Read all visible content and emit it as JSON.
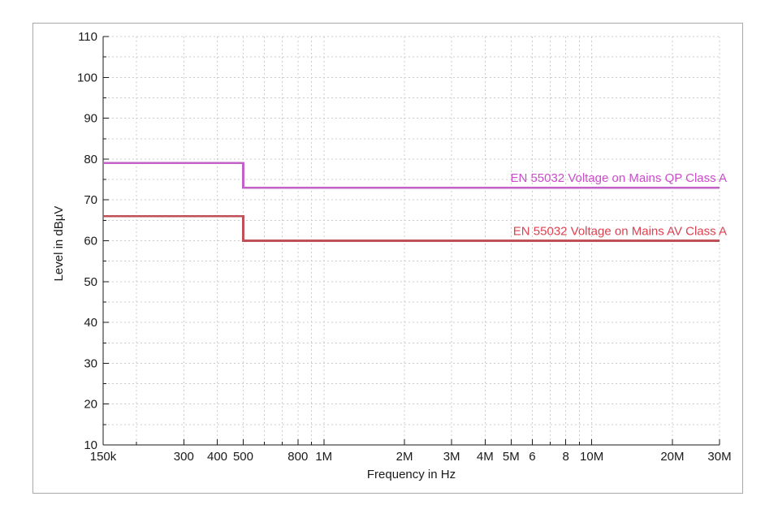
{
  "frame": {
    "border_color": "#a8a8a8",
    "background": "#ffffff"
  },
  "chart_data": {
    "type": "line",
    "style": "step",
    "title": "",
    "xlabel": "Frequency in Hz",
    "ylabel": "Level in dBµV",
    "x_scale": "log",
    "xlim": [
      150000,
      30000000
    ],
    "ylim": [
      10,
      110
    ],
    "grid": {
      "show": true,
      "color": "#cccccc",
      "dash": "2 3"
    },
    "axis_color": "#1a1a1a",
    "text_color": "#1a1a1a",
    "y_tick_labels": [
      "10",
      "20",
      "30",
      "40",
      "50",
      "60",
      "70",
      "80",
      "90",
      "100",
      "110"
    ],
    "y_major_tick_step": 10,
    "y_minor_tick_step": 5,
    "x_major_ticks": [
      {
        "label": "150k",
        "value": 150000
      },
      {
        "label": "300",
        "value": 300000
      },
      {
        "label": "400",
        "value": 400000
      },
      {
        "label": "500",
        "value": 500000
      },
      {
        "label": "800",
        "value": 800000
      },
      {
        "label": "1M",
        "value": 1000000
      },
      {
        "label": "2M",
        "value": 2000000
      },
      {
        "label": "3M",
        "value": 3000000
      },
      {
        "label": "4M",
        "value": 4000000
      },
      {
        "label": "5M",
        "value": 5000000
      },
      {
        "label": "6",
        "value": 6000000
      },
      {
        "label": "8",
        "value": 8000000
      },
      {
        "label": "10M",
        "value": 10000000
      },
      {
        "label": "20M",
        "value": 20000000
      },
      {
        "label": "30M",
        "value": 30000000
      }
    ],
    "x_minor_ticks": [
      200000,
      600000,
      700000,
      900000,
      7000000,
      9000000
    ],
    "series": [
      {
        "name": "EN 55032 Voltage on Mains QP Class A",
        "line_color": "#c361c9",
        "label_color": "#cc4ccc",
        "points": [
          [
            150000,
            79
          ],
          [
            500000,
            79
          ],
          [
            500000,
            73
          ],
          [
            30000000,
            73
          ]
        ]
      },
      {
        "name": "EN 55032 Voltage on Mains AV Class A",
        "line_color": "#c05058",
        "label_color": "#dc4150",
        "points": [
          [
            150000,
            66
          ],
          [
            500000,
            66
          ],
          [
            500000,
            60
          ],
          [
            30000000,
            60
          ]
        ]
      }
    ]
  }
}
